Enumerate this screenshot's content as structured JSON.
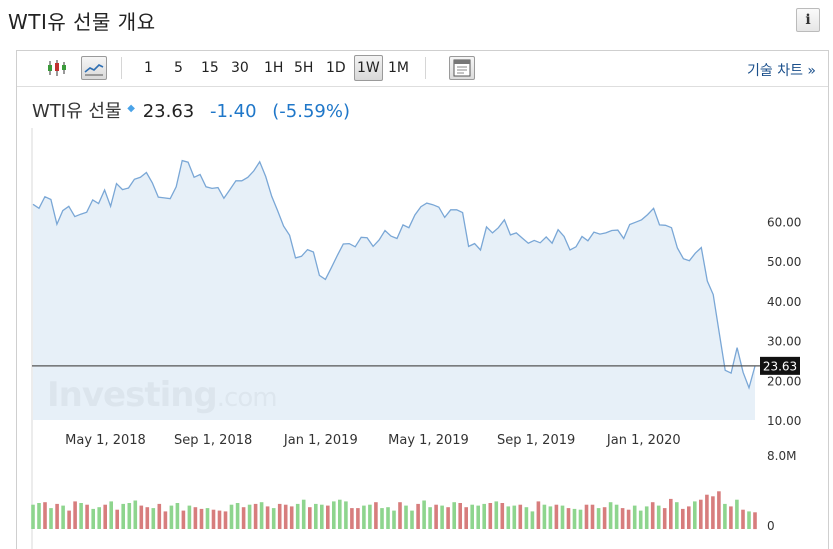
{
  "page": {
    "title": "WTI유 선물 개요",
    "info_label": "i"
  },
  "toolbar": {
    "intervals": [
      "1",
      "5",
      "15",
      "30",
      "1H",
      "5H",
      "1D",
      "1W",
      "1M"
    ],
    "active_interval": "1W",
    "tech_chart_label": "기술 차트",
    "tech_chart_arrow": "»"
  },
  "quote": {
    "name": "WTI유 선물",
    "price": "23.63",
    "change": "-1.40",
    "change_pct": "(-5.59%)"
  },
  "colors": {
    "line": "#7aa7d6",
    "area": "#e3edf7",
    "vol_up": "#8ed58e",
    "vol_down": "#d77d7d",
    "last_price_line": "#555555",
    "quote_change": "#1f77c9"
  },
  "chart_data": {
    "type": "area",
    "y_axis_labels": [
      "60.00",
      "50.00",
      "40.00",
      "30.00",
      "20.00",
      "10.00"
    ],
    "y_ticks": [
      60,
      50,
      40,
      30,
      20,
      10
    ],
    "ylim": [
      10,
      83
    ],
    "x_axis_labels": [
      "May 1, 2018",
      "Sep 1, 2018",
      "Jan 1, 2019",
      "May 1, 2019",
      "Sep 1, 2019",
      "Jan 1, 2020"
    ],
    "last_price": 23.63,
    "last_price_label": "23.63",
    "watermark": "Investing.com",
    "values": [
      64.3,
      63.3,
      66.2,
      65.5,
      59.3,
      62.7,
      63.8,
      61.2,
      61.8,
      62.3,
      65.4,
      64.5,
      67.9,
      63.8,
      69.5,
      68.0,
      68.4,
      70.6,
      71.1,
      72.3,
      69.7,
      66.1,
      65.9,
      65.7,
      68.7,
      75.3,
      74.9,
      71.1,
      71.8,
      68.7,
      68.3,
      68.5,
      65.8,
      68.0,
      70.2,
      70.2,
      71.1,
      72.7,
      75.0,
      71.3,
      66.3,
      62.7,
      58.8,
      56.5,
      50.8,
      51.2,
      52.9,
      52.3,
      46.4,
      45.4,
      48.3,
      51.4,
      54.3,
      54.4,
      53.6,
      56.0,
      55.9,
      53.7,
      55.3,
      57.7,
      56.3,
      55.7,
      59.1,
      58.4,
      61.6,
      63.7,
      64.6,
      64.2,
      63.6,
      61.0,
      62.9,
      62.9,
      62.2,
      53.7,
      54.4,
      52.8,
      58.6,
      57.1,
      58.4,
      60.4,
      56.6,
      57.1,
      55.8,
      54.5,
      55.2,
      54.6,
      56.1,
      54.5,
      57.9,
      56.2,
      52.8,
      53.6,
      56.2,
      55.1,
      57.3,
      56.8,
      57.1,
      57.7,
      57.8,
      55.7,
      59.2,
      59.8,
      60.4,
      61.7,
      63.3,
      59.1,
      59.0,
      58.4,
      53.3,
      50.6,
      50.1,
      52.0,
      53.4,
      45.0,
      41.6,
      32.0,
      22.5,
      21.8,
      28.2,
      22.0,
      18.1,
      23.6
    ],
    "volume_axis_labels": [
      "8.0M",
      "0"
    ],
    "volume_max": 8.0,
    "volume": [
      [
        2.9,
        1
      ],
      [
        3.1,
        1
      ],
      [
        3.2,
        0
      ],
      [
        2.5,
        1
      ],
      [
        3.0,
        0
      ],
      [
        2.8,
        1
      ],
      [
        2.2,
        0
      ],
      [
        3.3,
        0
      ],
      [
        3.1,
        1
      ],
      [
        2.9,
        0
      ],
      [
        2.4,
        1
      ],
      [
        2.6,
        1
      ],
      [
        2.9,
        0
      ],
      [
        3.3,
        1
      ],
      [
        2.3,
        0
      ],
      [
        3.0,
        1
      ],
      [
        3.1,
        1
      ],
      [
        3.4,
        1
      ],
      [
        2.8,
        0
      ],
      [
        2.6,
        0
      ],
      [
        2.5,
        1
      ],
      [
        3.0,
        0
      ],
      [
        2.1,
        0
      ],
      [
        2.8,
        1
      ],
      [
        3.1,
        1
      ],
      [
        2.2,
        0
      ],
      [
        2.8,
        1
      ],
      [
        2.6,
        0
      ],
      [
        2.4,
        0
      ],
      [
        2.5,
        1
      ],
      [
        2.3,
        0
      ],
      [
        2.2,
        0
      ],
      [
        2.1,
        0
      ],
      [
        2.9,
        1
      ],
      [
        3.1,
        1
      ],
      [
        2.6,
        0
      ],
      [
        2.9,
        1
      ],
      [
        3.0,
        0
      ],
      [
        3.2,
        1
      ],
      [
        2.7,
        0
      ],
      [
        2.5,
        1
      ],
      [
        3.0,
        0
      ],
      [
        2.9,
        0
      ],
      [
        2.7,
        0
      ],
      [
        3.0,
        1
      ],
      [
        3.5,
        1
      ],
      [
        2.6,
        0
      ],
      [
        3.0,
        1
      ],
      [
        2.9,
        1
      ],
      [
        2.8,
        0
      ],
      [
        3.3,
        1
      ],
      [
        3.5,
        1
      ],
      [
        3.3,
        1
      ],
      [
        2.5,
        0
      ],
      [
        2.5,
        0
      ],
      [
        2.8,
        1
      ],
      [
        2.9,
        1
      ],
      [
        3.2,
        0
      ],
      [
        2.5,
        1
      ],
      [
        2.6,
        1
      ],
      [
        2.2,
        1
      ],
      [
        3.2,
        0
      ],
      [
        2.8,
        1
      ],
      [
        2.2,
        1
      ],
      [
        3.0,
        0
      ],
      [
        3.4,
        1
      ],
      [
        2.6,
        1
      ],
      [
        2.9,
        0
      ],
      [
        2.8,
        1
      ],
      [
        2.6,
        0
      ],
      [
        3.2,
        1
      ],
      [
        3.1,
        0
      ],
      [
        2.6,
        0
      ],
      [
        2.9,
        1
      ],
      [
        2.8,
        1
      ],
      [
        3.0,
        1
      ],
      [
        3.1,
        0
      ],
      [
        3.3,
        1
      ],
      [
        3.1,
        0
      ],
      [
        2.7,
        1
      ],
      [
        2.8,
        1
      ],
      [
        2.9,
        0
      ],
      [
        2.6,
        1
      ],
      [
        2.1,
        1
      ],
      [
        3.3,
        0
      ],
      [
        2.9,
        1
      ],
      [
        2.7,
        1
      ],
      [
        2.9,
        0
      ],
      [
        2.8,
        1
      ],
      [
        2.5,
        0
      ],
      [
        2.4,
        1
      ],
      [
        2.3,
        1
      ],
      [
        2.9,
        0
      ],
      [
        2.9,
        0
      ],
      [
        2.5,
        1
      ],
      [
        2.6,
        0
      ],
      [
        3.2,
        1
      ],
      [
        2.9,
        1
      ],
      [
        2.5,
        0
      ],
      [
        2.3,
        0
      ],
      [
        2.8,
        1
      ],
      [
        2.2,
        1
      ],
      [
        2.7,
        1
      ],
      [
        3.2,
        0
      ],
      [
        2.8,
        1
      ],
      [
        2.5,
        0
      ],
      [
        3.6,
        0
      ],
      [
        3.2,
        1
      ],
      [
        2.4,
        0
      ],
      [
        2.7,
        0
      ],
      [
        3.3,
        1
      ],
      [
        3.5,
        0
      ],
      [
        4.1,
        0
      ],
      [
        3.9,
        0
      ],
      [
        4.5,
        0
      ],
      [
        3.0,
        1
      ],
      [
        2.7,
        0
      ],
      [
        3.5,
        1
      ],
      [
        2.3,
        0
      ],
      [
        2.1,
        1
      ],
      [
        2.0,
        0
      ]
    ]
  }
}
